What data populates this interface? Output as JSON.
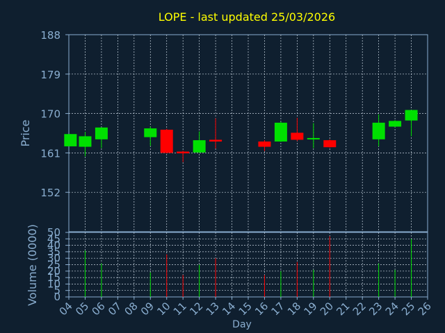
{
  "chart_data": {
    "type": "candlestick",
    "title": "LOPE - last updated 25/03/2026",
    "xlabel": "Day",
    "x_ticks": [
      "04",
      "05",
      "06",
      "07",
      "08",
      "09",
      "10",
      "11",
      "12",
      "13",
      "14",
      "15",
      "16",
      "17",
      "18",
      "19",
      "20",
      "21",
      "22",
      "23",
      "24",
      "25",
      "26"
    ],
    "price_panel": {
      "ylabel": "Price",
      "ylim": [
        143,
        188
      ],
      "y_ticks": [
        "188",
        "179",
        "170",
        "161",
        "152"
      ],
      "grid": true,
      "candles": [
        {
          "day": 4.1,
          "open": 162.5,
          "high": 165.3,
          "low": 162.5,
          "close": 165.3
        },
        {
          "day": 5,
          "open": 162.4,
          "high": 165.8,
          "low": 160.2,
          "close": 164.8
        },
        {
          "day": 6,
          "open": 164.1,
          "high": 166.8,
          "low": 162.1,
          "close": 166.8
        },
        {
          "day": 9,
          "open": 164.6,
          "high": 167.0,
          "low": 162.6,
          "close": 166.6
        },
        {
          "day": 10,
          "open": 166.3,
          "high": 166.5,
          "low": 160.9,
          "close": 161.0
        },
        {
          "day": 11,
          "open": 161.3,
          "high": 161.5,
          "low": 158.9,
          "close": 160.9
        },
        {
          "day": 12,
          "open": 161.1,
          "high": 165.9,
          "low": 161.0,
          "close": 163.9
        },
        {
          "day": 13,
          "open": 164.0,
          "high": 168.9,
          "low": 162.0,
          "close": 163.6
        },
        {
          "day": 16,
          "open": 163.6,
          "high": 163.9,
          "low": 161.4,
          "close": 162.4
        },
        {
          "day": 17,
          "open": 163.6,
          "high": 168.1,
          "low": 163.5,
          "close": 167.9
        },
        {
          "day": 18,
          "open": 165.6,
          "high": 169.0,
          "low": 163.7,
          "close": 164.0
        },
        {
          "day": 19,
          "open": 164.2,
          "high": 167.8,
          "low": 162.1,
          "close": 164.4
        },
        {
          "day": 20,
          "open": 163.9,
          "high": 164.1,
          "low": 162.2,
          "close": 162.3
        },
        {
          "day": 23,
          "open": 164.1,
          "high": 169.8,
          "low": 162.5,
          "close": 167.9
        },
        {
          "day": 24,
          "open": 167.0,
          "high": 168.5,
          "low": 166.9,
          "close": 168.3
        },
        {
          "day": 25,
          "open": 168.4,
          "high": 170.8,
          "low": 164.8,
          "close": 170.8
        }
      ]
    },
    "volume_panel": {
      "ylabel": "Volume (0000)",
      "ylim": [
        0,
        50
      ],
      "y_ticks": [
        "0",
        "5",
        "10",
        "15",
        "20",
        "25",
        "30",
        "35",
        "40",
        "45",
        "50"
      ],
      "grid": true,
      "bars": [
        {
          "day": 5,
          "volume": 36,
          "direction": "up"
        },
        {
          "day": 6,
          "volume": 26,
          "direction": "up"
        },
        {
          "day": 9,
          "volume": 19,
          "direction": "up"
        },
        {
          "day": 10,
          "volume": 33,
          "direction": "down"
        },
        {
          "day": 11,
          "volume": 17,
          "direction": "down"
        },
        {
          "day": 12,
          "volume": 25,
          "direction": "up"
        },
        {
          "day": 13,
          "volume": 30,
          "direction": "down"
        },
        {
          "day": 16,
          "volume": 17,
          "direction": "down"
        },
        {
          "day": 17,
          "volume": 20,
          "direction": "up"
        },
        {
          "day": 18,
          "volume": 27,
          "direction": "down"
        },
        {
          "day": 19,
          "volume": 21,
          "direction": "up"
        },
        {
          "day": 20,
          "volume": 47,
          "direction": "down"
        },
        {
          "day": 23,
          "volume": 26,
          "direction": "up"
        },
        {
          "day": 24,
          "volume": 21,
          "direction": "up"
        },
        {
          "day": 25,
          "volume": 45,
          "direction": "up"
        }
      ]
    },
    "colors": {
      "background": "#0f1f2f",
      "title": "#ffff00",
      "axis_text": "#8aaed0",
      "axis_line": "#8aaed0",
      "grid": "#c8d4e0",
      "up": "#00e000",
      "down": "#ff0000"
    }
  }
}
